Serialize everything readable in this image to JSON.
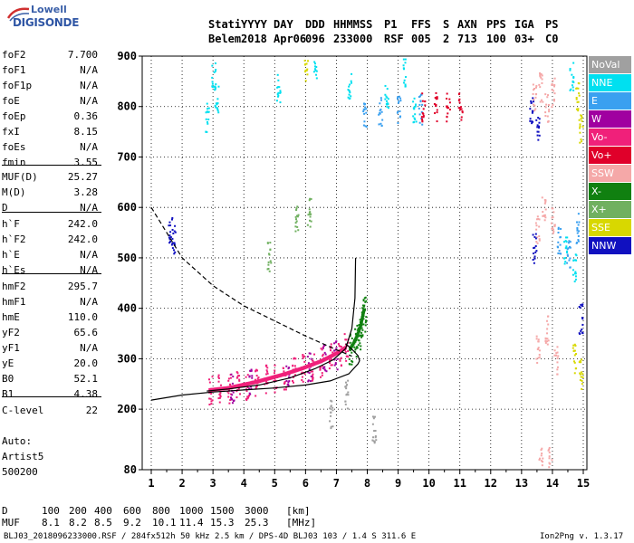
{
  "logo": {
    "line1": "Lowell",
    "line2": "DIGISONDE"
  },
  "header": {
    "row1": [
      "Stati",
      "YYYY",
      "DAY",
      "DDD",
      "HHMMSS",
      "P1",
      "FFS",
      "S",
      "AXN",
      "PPS",
      "IGA",
      "PS"
    ],
    "row2": [
      "Belem",
      "2018",
      "Apr06",
      "096",
      "233000",
      "RSF",
      "005",
      "2",
      "713",
      "100",
      "03+",
      "C0"
    ]
  },
  "params": [
    {
      "k": "foF2",
      "v": "7.700"
    },
    {
      "k": "foF1",
      "v": "N/A"
    },
    {
      "k": "foF1p",
      "v": "N/A"
    },
    {
      "k": "foE",
      "v": "N/A"
    },
    {
      "k": "foEp",
      "v": "0.36"
    },
    {
      "k": "fxI",
      "v": "8.15"
    },
    {
      "k": "foEs",
      "v": "N/A"
    },
    {
      "k": "fmin",
      "v": "3.55"
    },
    {
      "k": "MUF(D)",
      "v": "25.27"
    },
    {
      "k": "M(D)",
      "v": "3.28"
    },
    {
      "k": "D",
      "v": "N/A"
    },
    {
      "k": "h`F",
      "v": "242.0"
    },
    {
      "k": "h`F2",
      "v": "242.0"
    },
    {
      "k": "h`E",
      "v": "N/A"
    },
    {
      "k": "h`Es",
      "v": "N/A"
    },
    {
      "k": "hmF2",
      "v": "295.7"
    },
    {
      "k": "hmF1",
      "v": "N/A"
    },
    {
      "k": "hmE",
      "v": "110.0"
    },
    {
      "k": "yF2",
      "v": "65.6"
    },
    {
      "k": "yF1",
      "v": "N/A"
    },
    {
      "k": "yE",
      "v": "20.0"
    },
    {
      "k": "B0",
      "v": "52.1"
    },
    {
      "k": "B1",
      "v": "4.38"
    },
    {
      "k": "C-level",
      "v": "22"
    }
  ],
  "auto": {
    "line1": "Auto:",
    "line2": "Artist5",
    "line3": "500200"
  },
  "distance_table": {
    "d_label": "D",
    "d_values": [
      "100",
      "200",
      "400",
      "600",
      "800",
      "1000",
      "1500",
      "3000"
    ],
    "d_unit": "[km]",
    "muf_label": "MUF",
    "muf_values": [
      "8.1",
      "8.2",
      "8.5",
      "9.2",
      "10.1",
      "11.4",
      "15.3",
      "25.3"
    ],
    "muf_unit": "[MHz]"
  },
  "footer": {
    "left": "BLJ03_2018096233000.RSF / 284fx512h 50 kHz 2.5 km / DPS-4D BLJ03 103 / 1.4 S 311.6 E",
    "right": "Ion2Png v. 1.3.17"
  },
  "legend": [
    {
      "label": "NoVal",
      "color": "#a0a0a0"
    },
    {
      "label": "NNE",
      "color": "#00e0f0"
    },
    {
      "label": "E",
      "color": "#3aa0f0"
    },
    {
      "label": "W",
      "color": "#a000a0"
    },
    {
      "label": "Vo-",
      "color": "#f0207a"
    },
    {
      "label": "Vo+",
      "color": "#e0002a"
    },
    {
      "label": "SSW",
      "color": "#f5a8a8"
    },
    {
      "label": "X-",
      "color": "#108010"
    },
    {
      "label": "X+",
      "color": "#70b060"
    },
    {
      "label": "SSE",
      "color": "#d8d800"
    },
    {
      "label": "NNW",
      "color": "#1010c0"
    }
  ],
  "chart_data": {
    "type": "scatter",
    "xlabel": "",
    "ylabel": "",
    "xlim": [
      1,
      15
    ],
    "ylim": [
      80,
      900
    ],
    "xticks": [
      "1",
      "2",
      "3",
      "4",
      "5",
      "6",
      "7",
      "8",
      "9",
      "10",
      "11",
      "12",
      "13",
      "14",
      "15"
    ],
    "yticks": [
      "80",
      "200",
      "300",
      "400",
      "500",
      "600",
      "700",
      "800",
      "900"
    ],
    "ytick_values": [
      80,
      200,
      300,
      400,
      500,
      600,
      700,
      800,
      900
    ],
    "grid": true,
    "series": [
      {
        "name": "Vo-",
        "color": "#f0207a",
        "points": [
          [
            2.9,
            238
          ],
          [
            3.2,
            240
          ],
          [
            3.5,
            242
          ],
          [
            3.8,
            246
          ],
          [
            4.1,
            250
          ],
          [
            4.4,
            254
          ],
          [
            4.7,
            259
          ],
          [
            5.0,
            264
          ],
          [
            5.3,
            269
          ],
          [
            5.6,
            275
          ],
          [
            5.9,
            281
          ],
          [
            6.2,
            288
          ],
          [
            6.5,
            295
          ],
          [
            6.8,
            304
          ],
          [
            7.1,
            314
          ],
          [
            7.3,
            322
          ]
        ]
      },
      {
        "name": "X-",
        "color": "#108010",
        "points": [
          [
            7.45,
            320
          ],
          [
            7.6,
            335
          ],
          [
            7.7,
            350
          ],
          [
            7.8,
            368
          ],
          [
            7.85,
            385
          ],
          [
            7.9,
            398
          ]
        ]
      },
      {
        "name": "W",
        "color": "#a000a0",
        "points": [
          [
            3.6,
            244
          ],
          [
            4.2,
            252
          ],
          [
            5.4,
            270
          ],
          [
            6.1,
            286
          ],
          [
            6.6,
            300
          ],
          [
            6.95,
            310
          ]
        ]
      },
      {
        "name": "SSW",
        "color": "#f5a8a8",
        "points": [
          [
            13.4,
            820
          ],
          [
            13.6,
            840
          ],
          [
            13.8,
            800
          ],
          [
            14.0,
            830
          ],
          [
            13.5,
            560
          ],
          [
            13.7,
            600
          ],
          [
            14.0,
            580
          ],
          [
            13.5,
            320
          ],
          [
            13.8,
            360
          ],
          [
            14.1,
            300
          ],
          [
            13.6,
            95
          ],
          [
            13.9,
            100
          ]
        ]
      },
      {
        "name": "NNE",
        "color": "#00e0f0",
        "points": [
          [
            3.0,
            860
          ],
          [
            3.1,
            820
          ],
          [
            2.8,
            780
          ],
          [
            5.1,
            840
          ],
          [
            6.3,
            880
          ],
          [
            7.4,
            840
          ],
          [
            8.6,
            820
          ],
          [
            9.2,
            870
          ],
          [
            9.5,
            800
          ],
          [
            14.6,
            860
          ],
          [
            14.4,
            520
          ],
          [
            14.7,
            480
          ]
        ]
      },
      {
        "name": "E",
        "color": "#3aa0f0",
        "points": [
          [
            7.9,
            790
          ],
          [
            8.4,
            792
          ],
          [
            9.0,
            795
          ],
          [
            9.7,
            796
          ],
          [
            14.2,
            535
          ],
          [
            14.5,
            510
          ],
          [
            14.8,
            560
          ]
        ]
      },
      {
        "name": "Vo+",
        "color": "#e0002a",
        "points": [
          [
            9.8,
            800
          ],
          [
            10.2,
            801
          ],
          [
            10.6,
            802
          ],
          [
            11.0,
            803
          ]
        ]
      },
      {
        "name": "NNW",
        "color": "#1010c0",
        "points": [
          [
            1.6,
            560
          ],
          [
            1.7,
            540
          ],
          [
            13.3,
            790
          ],
          [
            13.5,
            760
          ],
          [
            13.4,
            520
          ],
          [
            14.9,
            380
          ]
        ]
      },
      {
        "name": "SSE",
        "color": "#d8d800",
        "points": [
          [
            14.8,
            820
          ],
          [
            14.9,
            760
          ],
          [
            14.7,
            300
          ],
          [
            14.9,
            270
          ],
          [
            6.0,
            880
          ]
        ]
      },
      {
        "name": "X+",
        "color": "#70b060",
        "points": [
          [
            5.7,
            575
          ],
          [
            6.1,
            590
          ],
          [
            4.8,
            505
          ]
        ]
      },
      {
        "name": "NoVal",
        "color": "#a0a0a0",
        "points": [
          [
            6.8,
            190
          ],
          [
            7.3,
            230
          ],
          [
            8.2,
            160
          ]
        ]
      }
    ],
    "profile_curve": [
      [
        1,
        218
      ],
      [
        2,
        228
      ],
      [
        3,
        234
      ],
      [
        4,
        238
      ],
      [
        5,
        242
      ],
      [
        6,
        248
      ],
      [
        6.8,
        256
      ],
      [
        7.4,
        270
      ],
      [
        7.7,
        290
      ],
      [
        7.75,
        296
      ],
      [
        7.7,
        306
      ],
      [
        7.55,
        316
      ],
      [
        7.3,
        330
      ]
    ],
    "trace_curve": [
      [
        2.8,
        236
      ],
      [
        3.5,
        240
      ],
      [
        4.5,
        248
      ],
      [
        5.5,
        262
      ],
      [
        6.3,
        280
      ],
      [
        6.9,
        298
      ],
      [
        7.3,
        320
      ],
      [
        7.5,
        360
      ],
      [
        7.6,
        420
      ],
      [
        7.62,
        500
      ]
    ],
    "dashed_curve": [
      [
        1,
        600
      ],
      [
        2,
        500
      ],
      [
        3,
        445
      ],
      [
        4,
        405
      ],
      [
        5,
        375
      ],
      [
        6,
        345
      ],
      [
        7,
        318
      ],
      [
        7.5,
        305
      ]
    ]
  }
}
